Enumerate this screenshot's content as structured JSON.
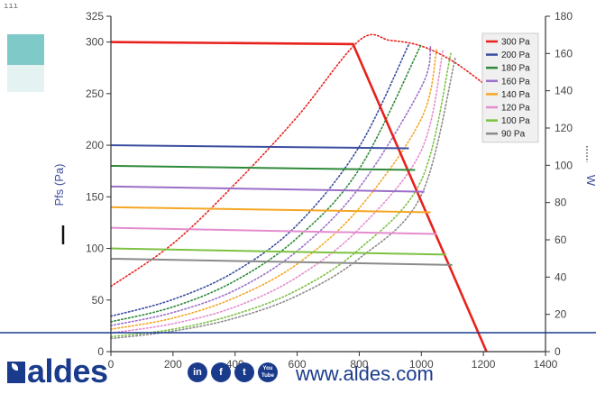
{
  "corner_mark": "ııı",
  "brand": {
    "logo_text": "aldes",
    "url": "www.aldes.com",
    "social": [
      "in",
      "f",
      "t",
      "You\nTube"
    ],
    "color": "#1a3a8c"
  },
  "swatches": [
    "#7fc9c9",
    "#e4f2f2"
  ],
  "chart_data": {
    "type": "line",
    "ylabel": "Pfs (Pa)",
    "y2label": "W",
    "xlim": [
      0,
      1400
    ],
    "ylim": [
      0,
      325
    ],
    "y2lim": [
      0,
      180
    ],
    "x_ticks": [
      0,
      200,
      400,
      600,
      800,
      1000,
      1200,
      1400
    ],
    "y_ticks": [
      0,
      50,
      100,
      150,
      200,
      250,
      300,
      325
    ],
    "y2_ticks": [
      0,
      20,
      40,
      60,
      80,
      100,
      120,
      140,
      160,
      180
    ],
    "legend_position": "top-right",
    "series": [
      {
        "name": "300 Pa",
        "color": "#e8211c",
        "pressure": [
          [
            0,
            300
          ],
          [
            780,
            298
          ],
          [
            1210,
            0
          ]
        ],
        "power": [
          [
            0,
            35
          ],
          [
            200,
            58
          ],
          [
            400,
            90
          ],
          [
            600,
            126
          ],
          [
            800,
            167
          ],
          [
            900,
            167
          ],
          [
            1000,
            164
          ],
          [
            1100,
            156
          ],
          [
            1200,
            144
          ]
        ]
      },
      {
        "name": "200 Pa",
        "color": "#3c4ea0",
        "pressure": [
          [
            0,
            200
          ],
          [
            960,
            197
          ]
        ],
        "power": [
          [
            0,
            19
          ],
          [
            200,
            28
          ],
          [
            400,
            43
          ],
          [
            600,
            68
          ],
          [
            800,
            110
          ],
          [
            960,
            165
          ]
        ]
      },
      {
        "name": "180 Pa",
        "color": "#2e8a3a",
        "pressure": [
          [
            0,
            180
          ],
          [
            980,
            176
          ]
        ],
        "power": [
          [
            0,
            16
          ],
          [
            200,
            24
          ],
          [
            400,
            38
          ],
          [
            600,
            61
          ],
          [
            800,
            98
          ],
          [
            1000,
            165
          ]
        ]
      },
      {
        "name": "160 Pa",
        "color": "#9b6fc9",
        "pressure": [
          [
            0,
            160
          ],
          [
            1010,
            155
          ]
        ],
        "power": [
          [
            0,
            14
          ],
          [
            200,
            21
          ],
          [
            400,
            33
          ],
          [
            600,
            54
          ],
          [
            800,
            88
          ],
          [
            1000,
            142
          ],
          [
            1030,
            164
          ]
        ]
      },
      {
        "name": "140 Pa",
        "color": "#f5a623",
        "pressure": [
          [
            0,
            140
          ],
          [
            1030,
            135
          ]
        ],
        "power": [
          [
            0,
            12
          ],
          [
            200,
            18
          ],
          [
            400,
            29
          ],
          [
            600,
            47
          ],
          [
            800,
            77
          ],
          [
            1000,
            125
          ],
          [
            1050,
            163
          ]
        ]
      },
      {
        "name": "120 Pa",
        "color": "#e58ccf",
        "pressure": [
          [
            0,
            120
          ],
          [
            1050,
            114
          ]
        ],
        "power": [
          [
            0,
            10
          ],
          [
            200,
            15
          ],
          [
            400,
            24
          ],
          [
            600,
            40
          ],
          [
            800,
            66
          ],
          [
            1000,
            108
          ],
          [
            1070,
            162
          ]
        ]
      },
      {
        "name": "100 Pa",
        "color": "#7cc242",
        "pressure": [
          [
            0,
            100
          ],
          [
            1080,
            94
          ]
        ],
        "power": [
          [
            0,
            8
          ],
          [
            200,
            12
          ],
          [
            400,
            20
          ],
          [
            600,
            33
          ],
          [
            800,
            55
          ],
          [
            1000,
            92
          ],
          [
            1095,
            160
          ]
        ]
      },
      {
        "name": "90 Pa",
        "color": "#8a8a8a",
        "pressure": [
          [
            0,
            90
          ],
          [
            1100,
            84
          ]
        ],
        "power": [
          [
            0,
            7
          ],
          [
            200,
            11
          ],
          [
            400,
            18
          ],
          [
            600,
            30
          ],
          [
            800,
            50
          ],
          [
            1000,
            84
          ],
          [
            1110,
            158
          ]
        ]
      }
    ]
  }
}
